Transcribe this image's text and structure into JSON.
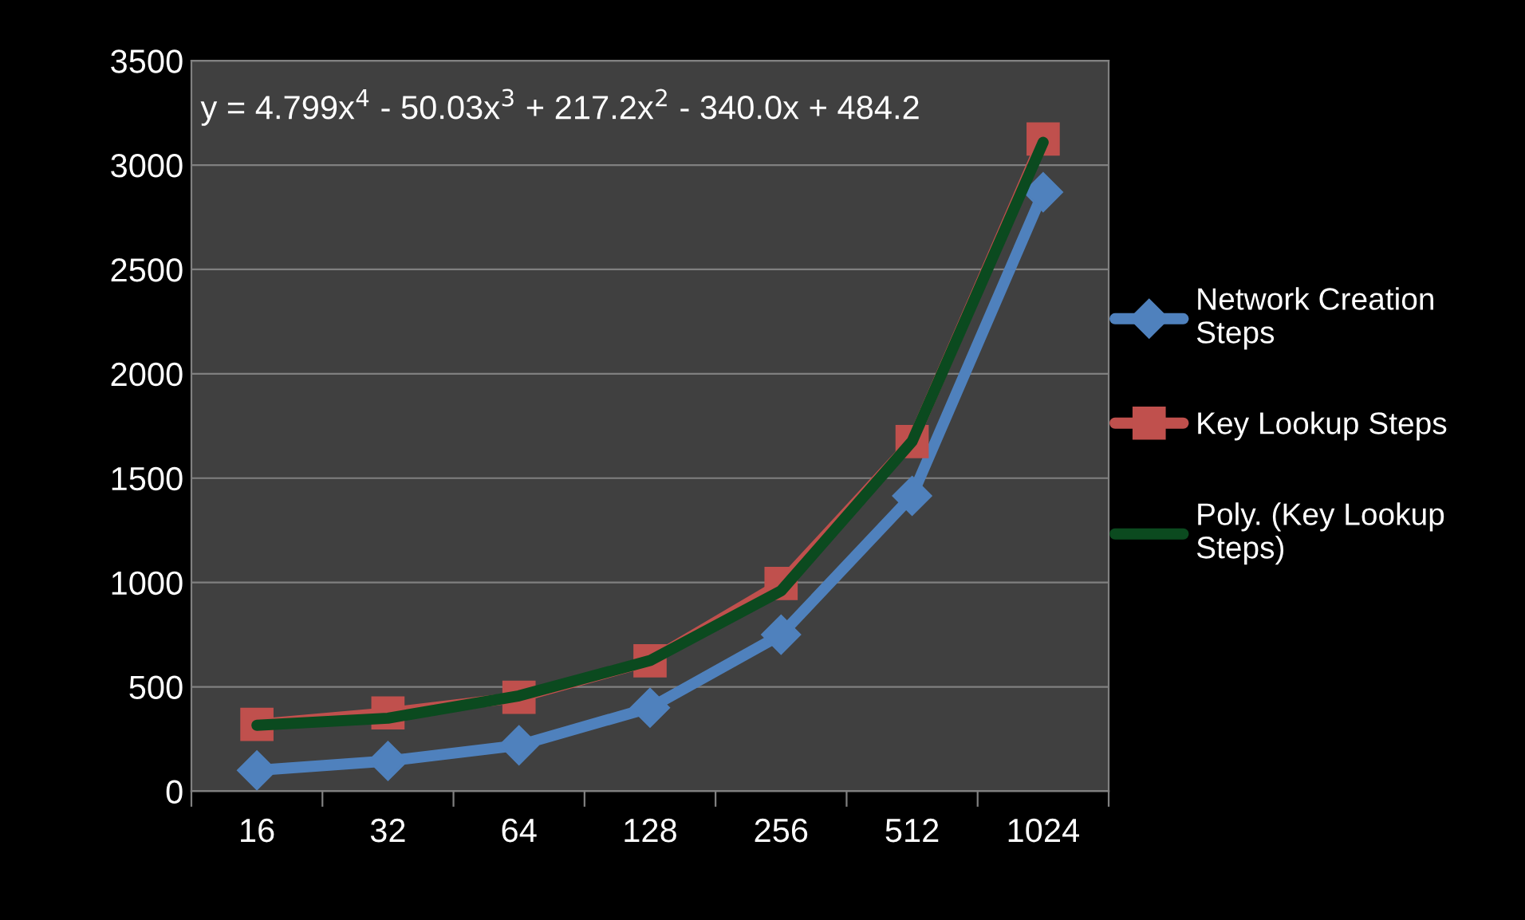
{
  "chart_data": {
    "type": "line",
    "categories": [
      "16",
      "32",
      "64",
      "128",
      "256",
      "512",
      "1024"
    ],
    "series": [
      {
        "name": "Network Creation Steps",
        "color": "#4f81bd",
        "marker": "diamond",
        "values": [
          100,
          145,
          220,
          400,
          750,
          1415,
          2870
        ]
      },
      {
        "name": "Key Lookup Steps",
        "color": "#c0504d",
        "marker": "square",
        "values": [
          320,
          375,
          450,
          625,
          995,
          1675,
          3125
        ]
      },
      {
        "name": "Poly. (Key Lookup Steps)",
        "color": "#0b4a1f",
        "marker": "none",
        "values": [
          316,
          350,
          457,
          626,
          960,
          1676,
          3109
        ]
      }
    ],
    "annotations": [
      "y = 4.799x$^{4}$ - 50.03x$^{3}$ + 217.2x$^{2}$ - 340.0x + 484.2"
    ],
    "ylim": [
      0,
      3500
    ],
    "yticks": [
      0,
      500,
      1000,
      1500,
      2000,
      2500,
      3000,
      3500
    ],
    "grid": "y",
    "legend": "right",
    "line_style": "solid"
  }
}
